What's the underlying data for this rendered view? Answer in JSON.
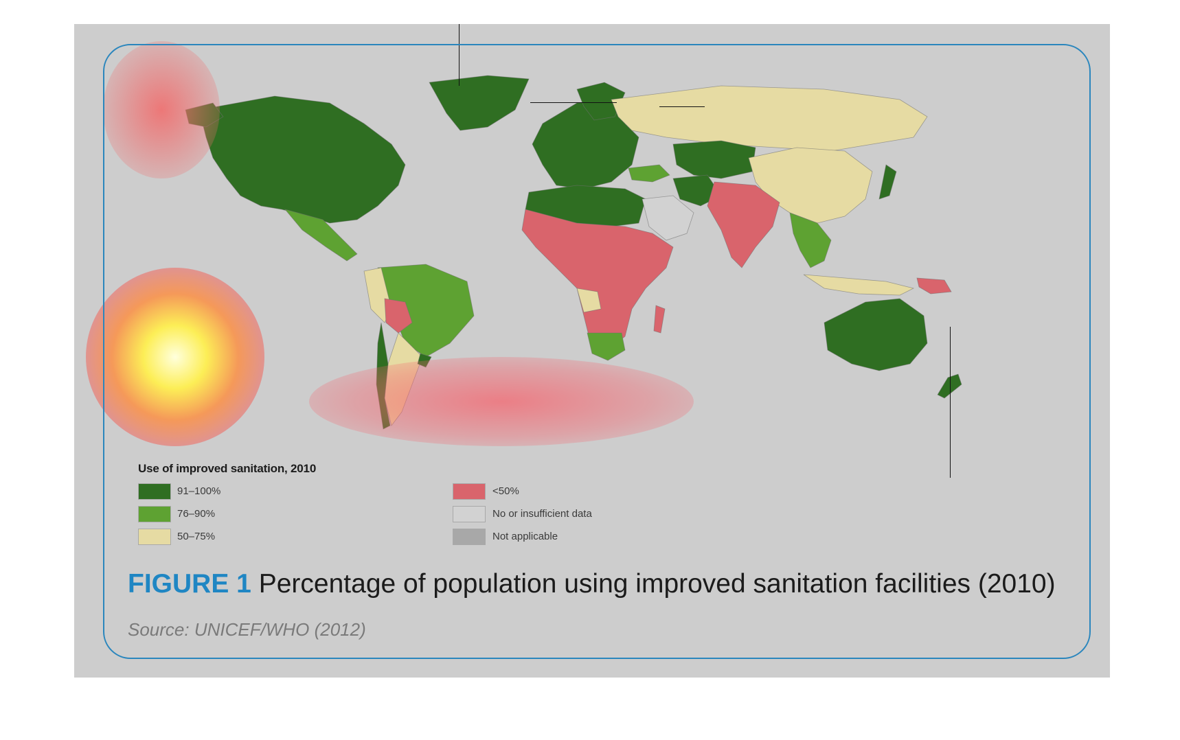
{
  "figure": {
    "label": "FIGURE 1",
    "title": "Percentage of population using improved sanitation facilities (2010)",
    "source": "Source: UNICEF/WHO (2012)"
  },
  "legend": {
    "title": "Use of improved sanitation, 2010",
    "items": [
      {
        "label": "91–100%",
        "color": "#2f6e22"
      },
      {
        "label": "76–90%",
        "color": "#5ea232"
      },
      {
        "label": "50–75%",
        "color": "#e6dba3"
      },
      {
        "label": "<50%",
        "color": "#d9646c"
      },
      {
        "label": "No or insufficient data",
        "color": "#d2d2d2"
      },
      {
        "label": "Not applicable",
        "color": "#a8a8a8"
      }
    ]
  },
  "colors": {
    "background": "#cdcdcd",
    "frame": "#2a86bd",
    "accent": "#1f86c3"
  }
}
